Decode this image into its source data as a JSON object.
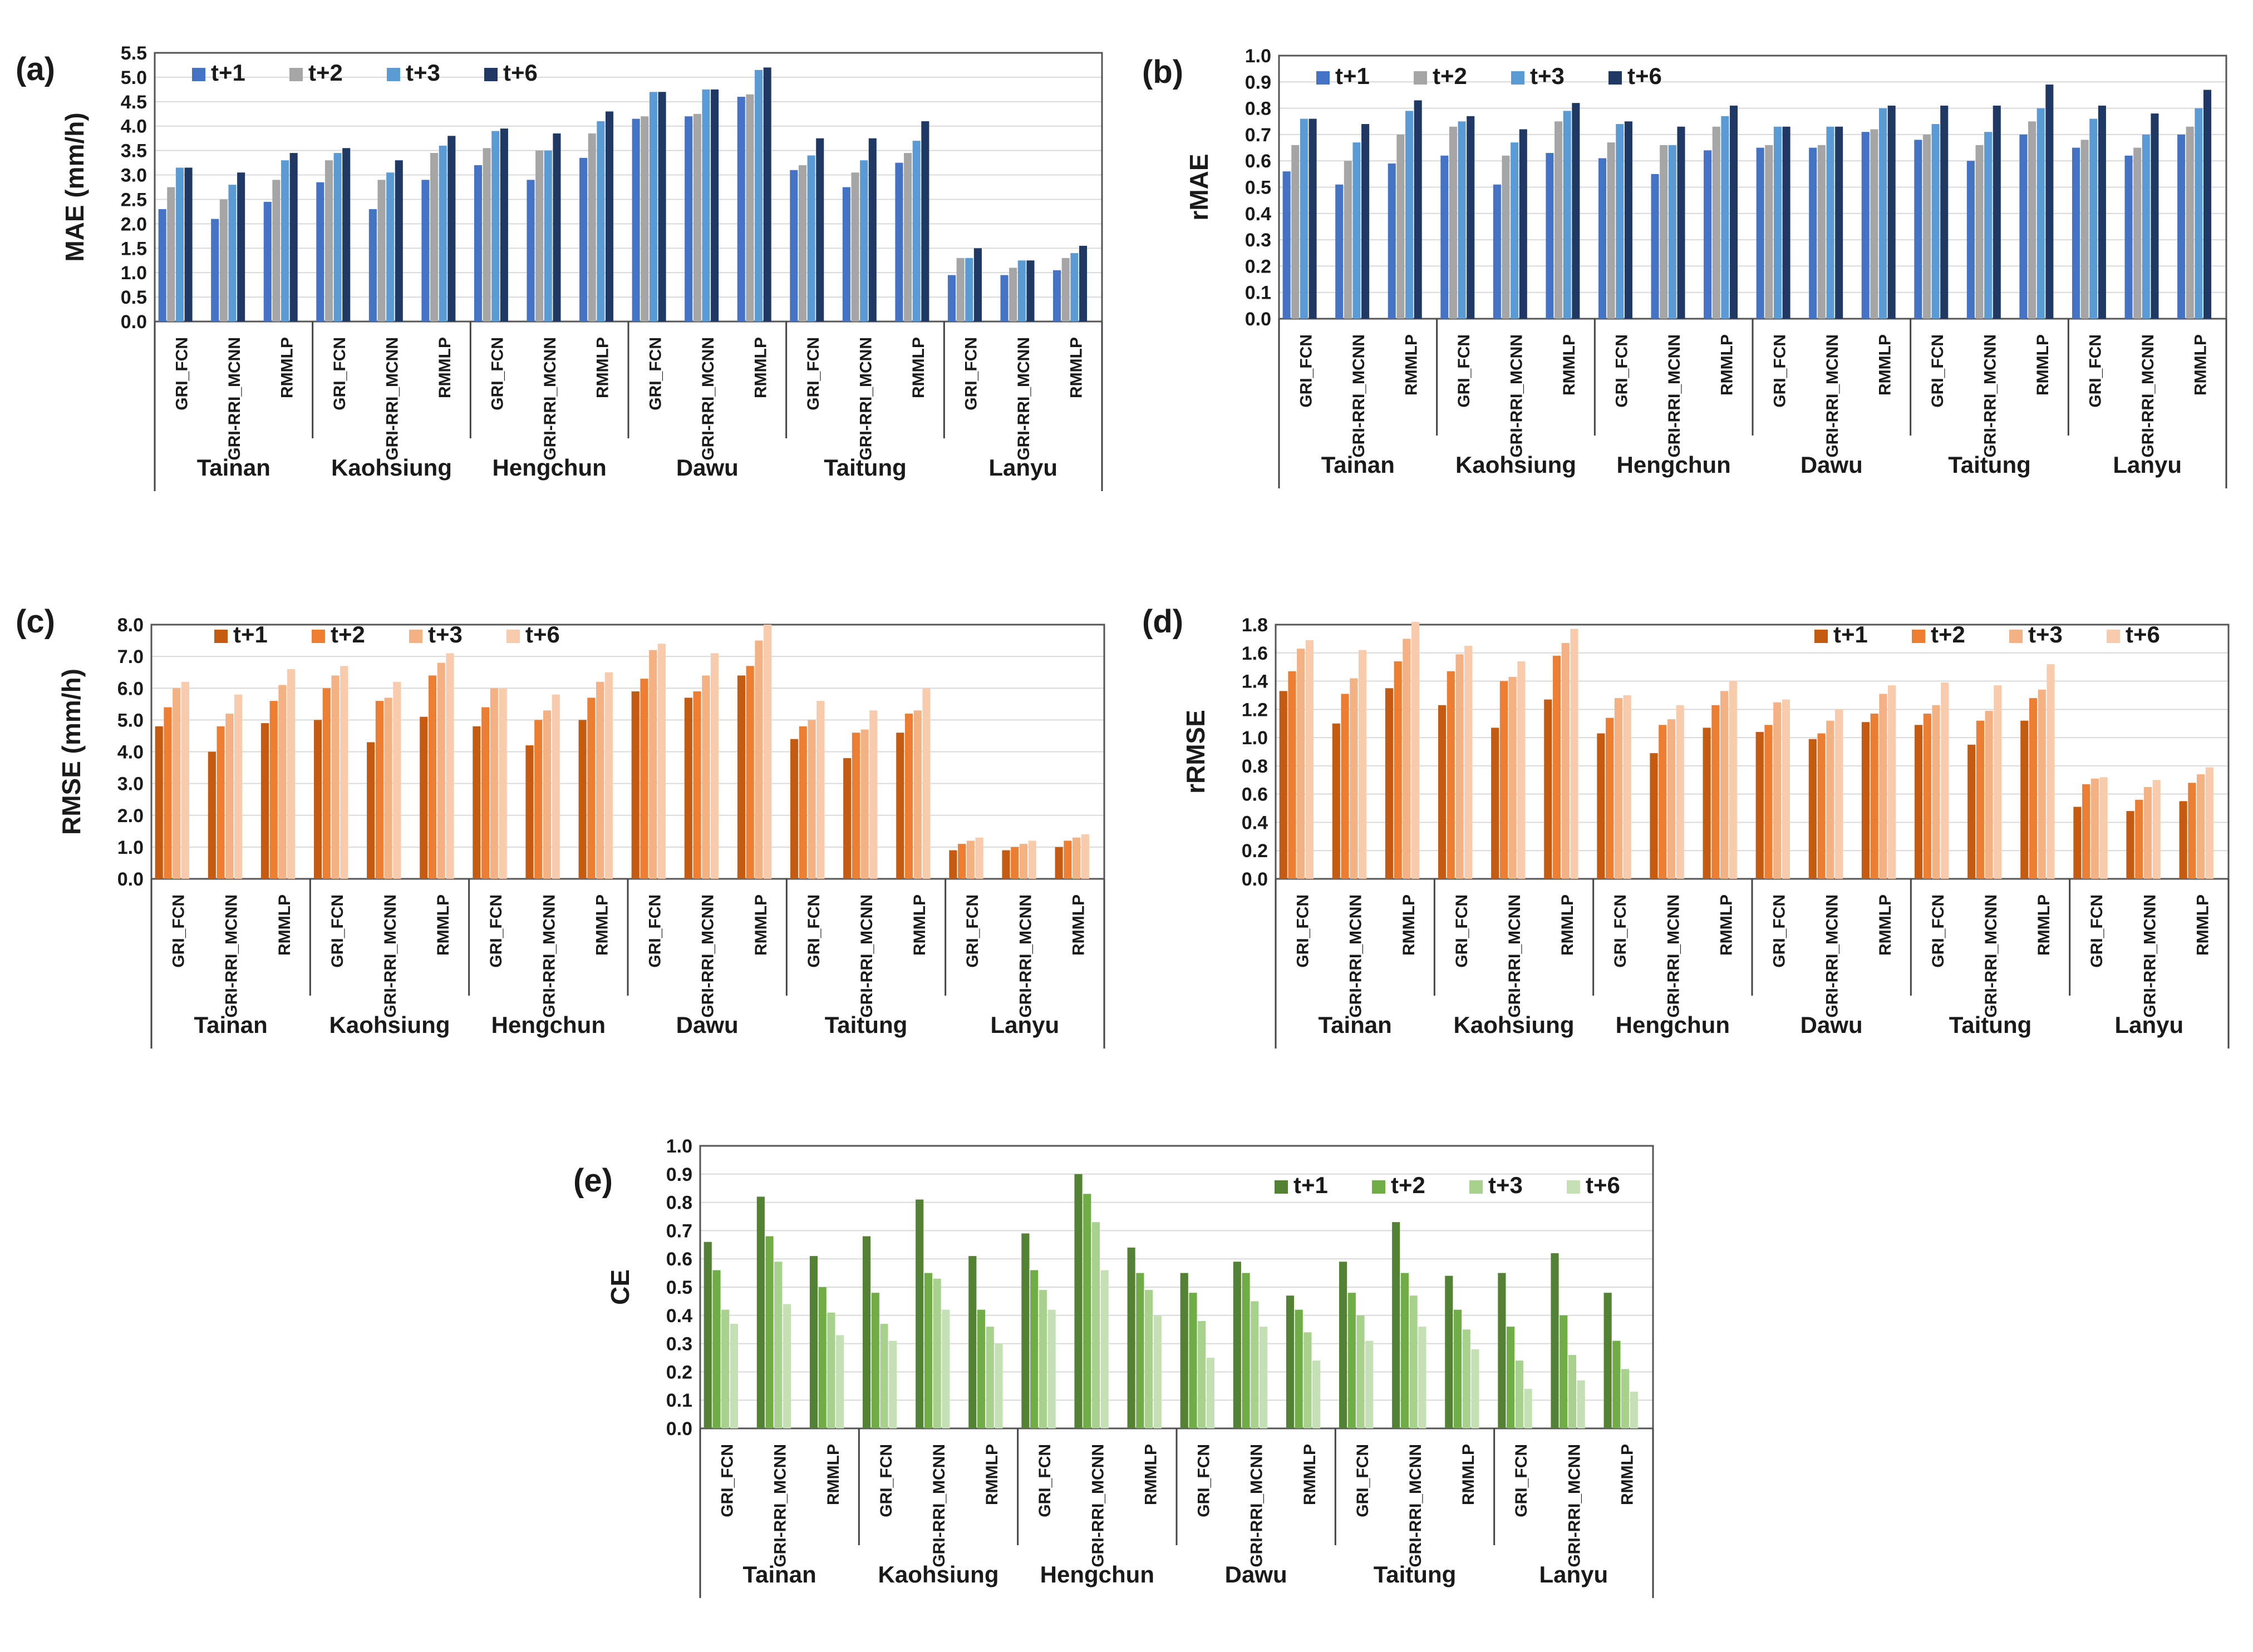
{
  "colors": {
    "blue": [
      "#4472c4",
      "#a5a5a5",
      "#5b9bd5",
      "#203864"
    ],
    "orange": [
      "#c55a11",
      "#ed7d31",
      "#f4b183",
      "#f8cbad"
    ],
    "green": [
      "#548235",
      "#70ad47",
      "#a9d18e",
      "#c5e0b4"
    ]
  },
  "chart_data": [
    {
      "panel": "(a)",
      "type": "bar",
      "ylabel": "MAE (mm/h)",
      "ylim": [
        0,
        5.5
      ],
      "yticks": [
        "0.0",
        "0.5",
        "1.0",
        "1.5",
        "2.0",
        "2.5",
        "3.0",
        "3.5",
        "4.0",
        "4.5",
        "5.0",
        "5.5"
      ],
      "stations": [
        "Tainan",
        "Kaohsiung",
        "Hengchun",
        "Dawu",
        "Taitung",
        "Lanyu"
      ],
      "models": [
        "GRI_FCN",
        "GRI-RRI_MCNN",
        "RMMLP"
      ],
      "legend_position": "top-left",
      "palette": "blue",
      "series": [
        {
          "name": "t+1",
          "values": [
            2.3,
            2.1,
            2.45,
            2.85,
            2.3,
            2.9,
            3.2,
            2.9,
            3.35,
            4.15,
            4.2,
            4.6,
            3.1,
            2.75,
            3.25,
            0.95,
            0.95,
            1.05
          ]
        },
        {
          "name": "t+2",
          "values": [
            2.75,
            2.5,
            2.9,
            3.3,
            2.9,
            3.45,
            3.55,
            3.5,
            3.85,
            4.2,
            4.25,
            4.65,
            3.2,
            3.05,
            3.45,
            1.3,
            1.1,
            1.3
          ]
        },
        {
          "name": "t+3",
          "values": [
            3.15,
            2.8,
            3.3,
            3.45,
            3.05,
            3.6,
            3.9,
            3.5,
            4.1,
            4.7,
            4.75,
            5.15,
            3.4,
            3.3,
            3.7,
            1.3,
            1.25,
            1.4
          ]
        },
        {
          "name": "t+6",
          "values": [
            3.15,
            3.05,
            3.45,
            3.55,
            3.3,
            3.8,
            3.95,
            3.85,
            4.3,
            4.7,
            4.75,
            5.2,
            3.75,
            3.75,
            4.1,
            1.5,
            1.25,
            1.55
          ]
        }
      ]
    },
    {
      "panel": "(b)",
      "type": "bar",
      "ylabel": "rMAE",
      "ylim": [
        0,
        1.0
      ],
      "yticks": [
        "0.0",
        "0.1",
        "0.2",
        "0.3",
        "0.4",
        "0.5",
        "0.6",
        "0.7",
        "0.8",
        "0.9",
        "1.0"
      ],
      "stations": [
        "Tainan",
        "Kaohsiung",
        "Hengchun",
        "Dawu",
        "Taitung",
        "Lanyu"
      ],
      "models": [
        "GRI_FCN",
        "GRI-RRI_MCNN",
        "RMMLP"
      ],
      "legend_position": "top-left",
      "palette": "blue",
      "series": [
        {
          "name": "t+1",
          "values": [
            0.56,
            0.51,
            0.59,
            0.62,
            0.51,
            0.63,
            0.61,
            0.55,
            0.64,
            0.65,
            0.65,
            0.71,
            0.68,
            0.6,
            0.7,
            0.65,
            0.62,
            0.7
          ]
        },
        {
          "name": "t+2",
          "values": [
            0.66,
            0.6,
            0.7,
            0.73,
            0.62,
            0.75,
            0.67,
            0.66,
            0.73,
            0.66,
            0.66,
            0.72,
            0.7,
            0.66,
            0.75,
            0.68,
            0.65,
            0.73
          ]
        },
        {
          "name": "t+3",
          "values": [
            0.76,
            0.67,
            0.79,
            0.75,
            0.67,
            0.79,
            0.74,
            0.66,
            0.77,
            0.73,
            0.73,
            0.8,
            0.74,
            0.71,
            0.8,
            0.76,
            0.7,
            0.8
          ]
        },
        {
          "name": "t+6",
          "values": [
            0.76,
            0.74,
            0.83,
            0.77,
            0.72,
            0.82,
            0.75,
            0.73,
            0.81,
            0.73,
            0.73,
            0.81,
            0.81,
            0.81,
            0.89,
            0.81,
            0.78,
            0.87
          ]
        }
      ]
    },
    {
      "panel": "(c)",
      "type": "bar",
      "ylabel": "RMSE (mm/h)",
      "ylim": [
        0,
        8.0
      ],
      "yticks": [
        "0.0",
        "1.0",
        "2.0",
        "3.0",
        "4.0",
        "5.0",
        "6.0",
        "7.0",
        "8.0"
      ],
      "stations": [
        "Tainan",
        "Kaohsiung",
        "Hengchun",
        "Dawu",
        "Taitung",
        "Lanyu"
      ],
      "models": [
        "GRI_FCN",
        "GRI-RRI_MCNN",
        "RMMLP"
      ],
      "legend_position": "top-left",
      "palette": "orange",
      "series": [
        {
          "name": "t+1",
          "values": [
            4.8,
            4.0,
            4.9,
            5.0,
            4.3,
            5.1,
            4.8,
            4.2,
            5.0,
            5.9,
            5.7,
            6.4,
            4.4,
            3.8,
            4.6,
            0.9,
            0.9,
            1.0
          ]
        },
        {
          "name": "t+2",
          "values": [
            5.4,
            4.8,
            5.6,
            6.0,
            5.6,
            6.4,
            5.4,
            5.0,
            5.7,
            6.3,
            5.9,
            6.7,
            4.8,
            4.6,
            5.2,
            1.1,
            1.0,
            1.2
          ]
        },
        {
          "name": "t+3",
          "values": [
            6.0,
            5.2,
            6.1,
            6.4,
            5.7,
            6.8,
            6.0,
            5.3,
            6.2,
            7.2,
            6.4,
            7.5,
            5.0,
            4.7,
            5.3,
            1.2,
            1.1,
            1.3
          ]
        },
        {
          "name": "t+6",
          "values": [
            6.2,
            5.8,
            6.6,
            6.7,
            6.2,
            7.1,
            6.0,
            5.8,
            6.5,
            7.4,
            7.1,
            8.0,
            5.6,
            5.3,
            6.0,
            1.3,
            1.2,
            1.4
          ]
        }
      ]
    },
    {
      "panel": "(d)",
      "type": "bar",
      "ylabel": "rRMSE",
      "ylim": [
        0,
        1.8
      ],
      "yticks": [
        "0.0",
        "0.2",
        "0.4",
        "0.6",
        "0.8",
        "1.0",
        "1.2",
        "1.4",
        "1.6",
        "1.8"
      ],
      "stations": [
        "Tainan",
        "Kaohsiung",
        "Hengchun",
        "Dawu",
        "Taitung",
        "Lanyu"
      ],
      "models": [
        "GRI_FCN",
        "GRI-RRI_MCNN",
        "RMMLP"
      ],
      "legend_position": "top-right",
      "palette": "orange",
      "series": [
        {
          "name": "t+1",
          "values": [
            1.33,
            1.1,
            1.35,
            1.23,
            1.07,
            1.27,
            1.03,
            0.89,
            1.07,
            1.04,
            0.99,
            1.11,
            1.09,
            0.95,
            1.12,
            0.51,
            0.48,
            0.55
          ]
        },
        {
          "name": "t+2",
          "values": [
            1.47,
            1.31,
            1.54,
            1.47,
            1.4,
            1.58,
            1.14,
            1.09,
            1.23,
            1.09,
            1.03,
            1.17,
            1.17,
            1.12,
            1.28,
            0.67,
            0.56,
            0.68
          ]
        },
        {
          "name": "t+3",
          "values": [
            1.63,
            1.42,
            1.7,
            1.59,
            1.43,
            1.67,
            1.28,
            1.13,
            1.33,
            1.25,
            1.12,
            1.31,
            1.23,
            1.19,
            1.34,
            0.71,
            0.65,
            0.74
          ]
        },
        {
          "name": "t+6",
          "values": [
            1.69,
            1.62,
            1.82,
            1.65,
            1.54,
            1.77,
            1.3,
            1.23,
            1.4,
            1.27,
            1.2,
            1.37,
            1.39,
            1.37,
            1.52,
            0.72,
            0.7,
            0.79
          ]
        }
      ]
    },
    {
      "panel": "(e)",
      "type": "bar",
      "ylabel": "CE",
      "ylim": [
        0,
        1.0
      ],
      "yticks": [
        "0.0",
        "0.1",
        "0.2",
        "0.3",
        "0.4",
        "0.5",
        "0.6",
        "0.7",
        "0.8",
        "0.9",
        "1.0"
      ],
      "stations": [
        "Tainan",
        "Kaohsiung",
        "Hengchun",
        "Dawu",
        "Taitung",
        "Lanyu"
      ],
      "models": [
        "GRI_FCN",
        "GRI-RRI_MCNN",
        "RMMLP"
      ],
      "legend_position": "top-right",
      "palette": "green",
      "series": [
        {
          "name": "t+1",
          "values": [
            0.66,
            0.82,
            0.61,
            0.68,
            0.81,
            0.61,
            0.69,
            0.9,
            0.64,
            0.55,
            0.59,
            0.47,
            0.59,
            0.73,
            0.54,
            0.55,
            0.62,
            0.48
          ]
        },
        {
          "name": "t+2",
          "values": [
            0.56,
            0.68,
            0.5,
            0.48,
            0.55,
            0.42,
            0.56,
            0.83,
            0.55,
            0.48,
            0.55,
            0.42,
            0.48,
            0.55,
            0.42,
            0.36,
            0.4,
            0.31
          ]
        },
        {
          "name": "t+3",
          "values": [
            0.42,
            0.59,
            0.41,
            0.37,
            0.53,
            0.36,
            0.49,
            0.73,
            0.49,
            0.38,
            0.45,
            0.34,
            0.4,
            0.47,
            0.35,
            0.24,
            0.26,
            0.21
          ]
        },
        {
          "name": "t+6",
          "values": [
            0.37,
            0.44,
            0.33,
            0.31,
            0.42,
            0.3,
            0.42,
            0.56,
            0.4,
            0.25,
            0.36,
            0.24,
            0.31,
            0.36,
            0.28,
            0.14,
            0.17,
            0.13
          ]
        }
      ]
    }
  ]
}
